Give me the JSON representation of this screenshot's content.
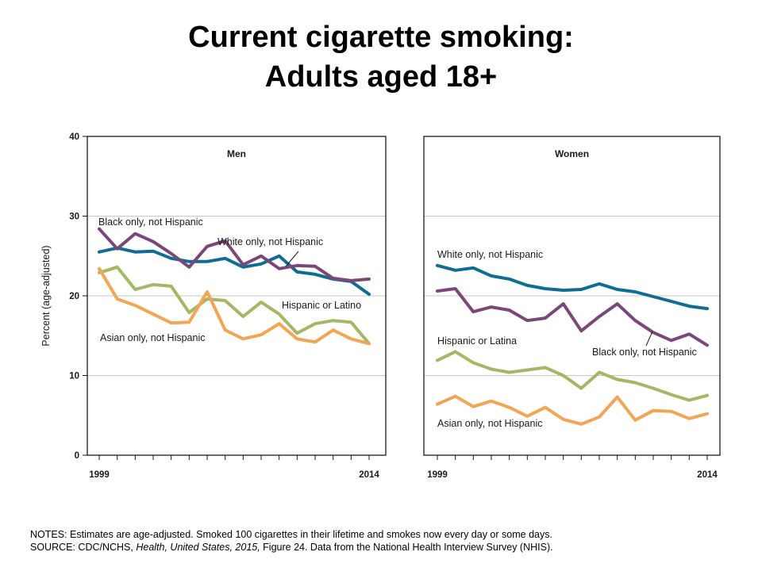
{
  "title_line1": "Current cigarette smoking:",
  "title_line2": "Adults aged 18+",
  "notes": "NOTES: Estimates are age-adjusted. Smoked 100 cigarettes in their lifetime and smokes now every day or some days.",
  "source_prefix": "SOURCE: CDC/NCHS, ",
  "source_italic1": "Health, United States, 2015,",
  "source_mid": " Figure 24. Data from the National Health Interview Survey (NHIS).",
  "colors": {
    "white": "#0e6c95",
    "black": "#7b4779",
    "hispanic": "#a3b865",
    "asian": "#f2a553"
  },
  "chart_data": [
    {
      "type": "line",
      "title": "Men",
      "ylabel": "Percent (age-adjusted)",
      "ylim": [
        0,
        40
      ],
      "yticks": [
        0,
        10,
        20,
        30,
        40
      ],
      "x": [
        1999,
        2000,
        2001,
        2002,
        2003,
        2004,
        2005,
        2006,
        2007,
        2008,
        2009,
        2010,
        2011,
        2012,
        2013,
        2014
      ],
      "xtick_labels": [
        "1999",
        "2014"
      ],
      "grid": true,
      "series": [
        {
          "key": "white",
          "name": "White only, not Hispanic",
          "values": [
            25.5,
            26.0,
            25.5,
            25.6,
            24.7,
            24.3,
            24.3,
            24.7,
            23.6,
            24.0,
            25.0,
            23.0,
            22.7,
            22.1,
            21.8,
            20.2
          ]
        },
        {
          "key": "black",
          "name": "Black only, not Hispanic",
          "values": [
            28.4,
            25.9,
            27.8,
            26.8,
            25.3,
            23.6,
            26.2,
            26.9,
            23.9,
            25.0,
            23.4,
            23.8,
            23.7,
            22.2,
            21.9,
            22.1
          ]
        },
        {
          "key": "hispanic",
          "name": "Hispanic or Latino",
          "values": [
            22.9,
            23.6,
            20.8,
            21.4,
            21.2,
            17.9,
            19.6,
            19.4,
            17.4,
            19.2,
            17.7,
            15.3,
            16.5,
            16.9,
            16.7,
            14.0
          ]
        },
        {
          "key": "asian",
          "name": "Asian only, not Hispanic",
          "values": [
            23.4,
            19.6,
            18.8,
            17.7,
            16.6,
            16.7,
            20.5,
            15.7,
            14.6,
            15.1,
            16.5,
            14.6,
            14.2,
            15.7,
            14.6,
            14.0
          ]
        }
      ]
    },
    {
      "type": "line",
      "title": "Women",
      "ylim": [
        0,
        40
      ],
      "x": [
        1999,
        2000,
        2001,
        2002,
        2003,
        2004,
        2005,
        2006,
        2007,
        2008,
        2009,
        2010,
        2011,
        2012,
        2013,
        2014
      ],
      "xtick_labels": [
        "1999",
        "2014"
      ],
      "grid": true,
      "series": [
        {
          "key": "white",
          "name": "White only, not Hispanic",
          "values": [
            23.8,
            23.2,
            23.5,
            22.5,
            22.1,
            21.3,
            20.9,
            20.7,
            20.8,
            21.5,
            20.8,
            20.5,
            19.9,
            19.3,
            18.7,
            18.4
          ]
        },
        {
          "key": "black",
          "name": "Black only, not Hispanic",
          "values": [
            20.6,
            20.9,
            18.0,
            18.6,
            18.2,
            16.9,
            17.2,
            19.0,
            15.6,
            17.4,
            19.0,
            16.9,
            15.4,
            14.4,
            15.2,
            13.8
          ]
        },
        {
          "key": "hispanic",
          "name": "Hispanic or Latina",
          "values": [
            11.9,
            13.0,
            11.6,
            10.8,
            10.4,
            10.7,
            11.0,
            10.0,
            8.4,
            10.4,
            9.5,
            9.1,
            8.4,
            7.6,
            6.9,
            7.5
          ]
        },
        {
          "key": "asian",
          "name": "Asian only, not Hispanic",
          "values": [
            6.4,
            7.4,
            6.1,
            6.8,
            6.0,
            4.9,
            6.0,
            4.5,
            3.9,
            4.8,
            7.3,
            4.4,
            5.6,
            5.5,
            4.6,
            5.2
          ]
        }
      ]
    }
  ]
}
